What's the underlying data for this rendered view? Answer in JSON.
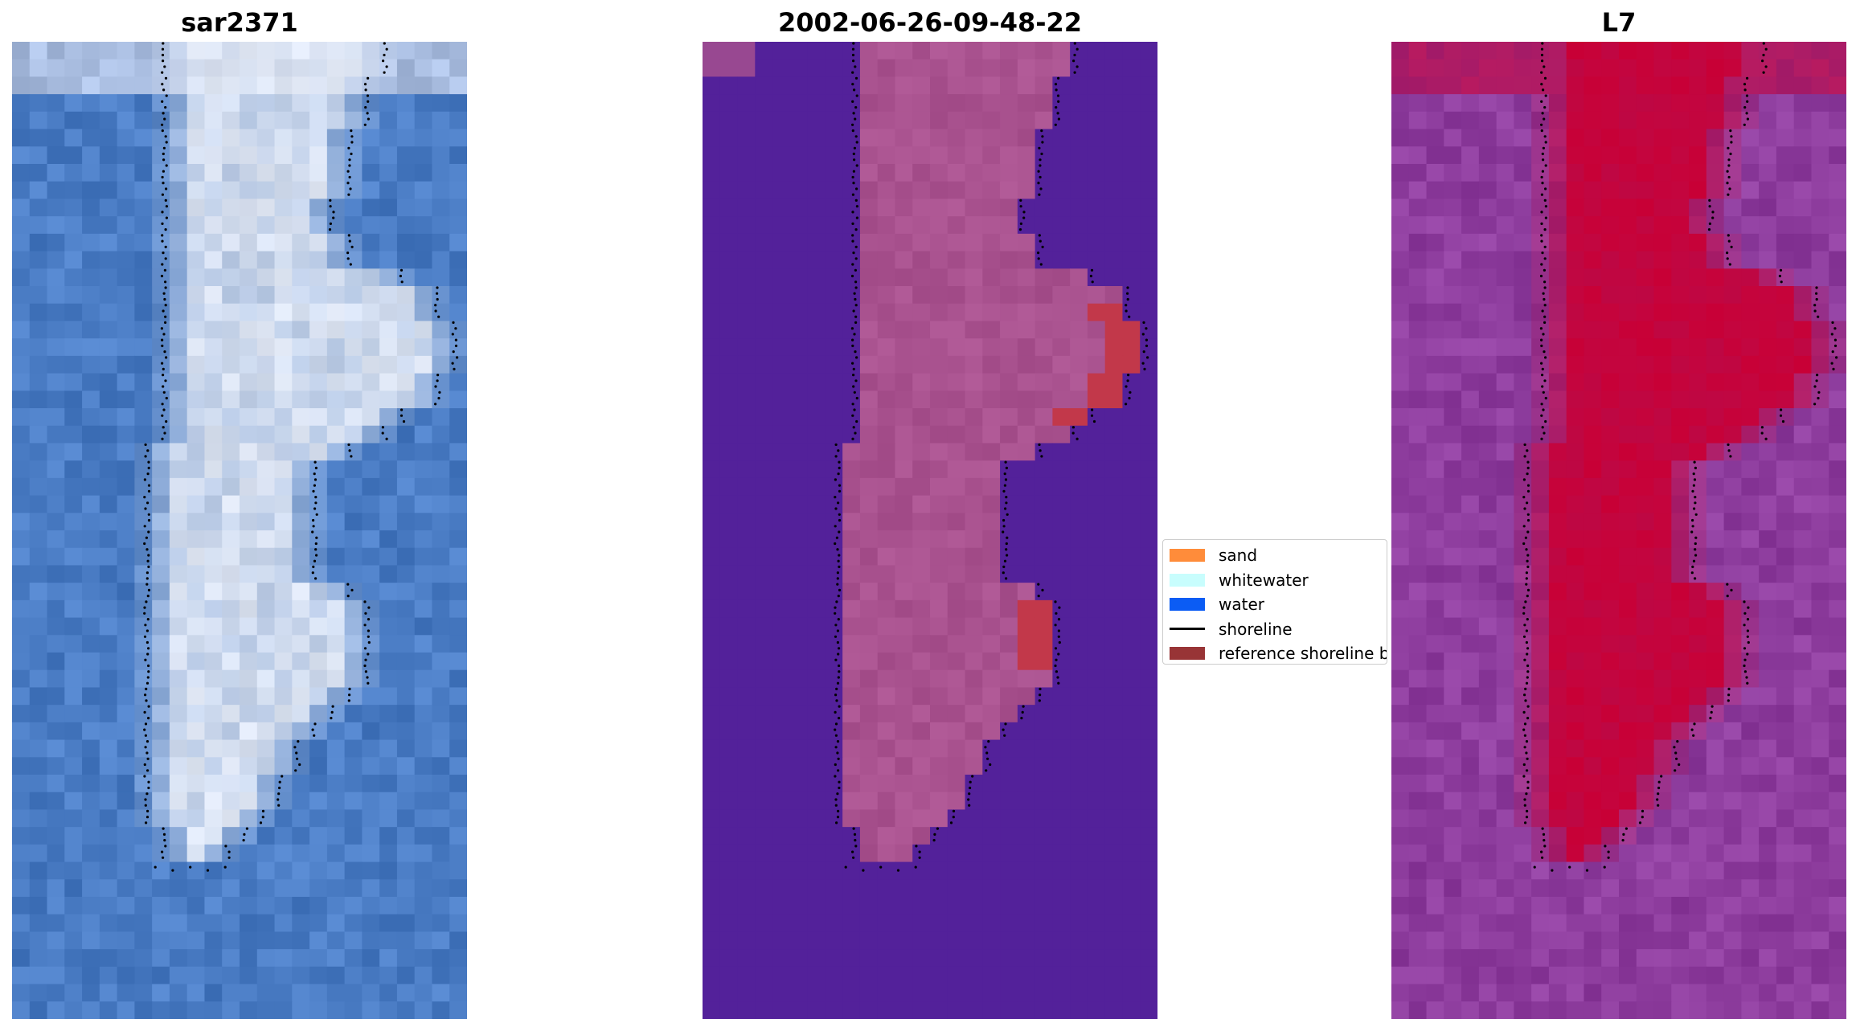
{
  "panels": [
    {
      "title": "sar2371",
      "kind": "rgb"
    },
    {
      "title": "2002-06-26-09-48-22",
      "kind": "classified"
    },
    {
      "title": "L7",
      "kind": "index"
    }
  ],
  "legend": {
    "items": [
      {
        "label": "sand",
        "color": "#ff8c3a",
        "kind": "patch"
      },
      {
        "label": "whitewater",
        "color": "#c8fdfd",
        "kind": "patch"
      },
      {
        "label": "water",
        "color": "#0b5cf4",
        "kind": "patch"
      },
      {
        "label": "shoreline",
        "color": "#000000",
        "kind": "line"
      },
      {
        "label": "reference shoreline buffer",
        "color": "#983436",
        "kind": "patch"
      }
    ]
  },
  "colors": {
    "rgb_water": "#4a7cc4",
    "rgb_land": "#dfe6f3",
    "classified_background": "#53219a",
    "classified_land": "#a9528f",
    "classified_buffer_hit": "#c2384a",
    "index_low": "#8e3d9e",
    "index_high": "#c80036"
  }
}
